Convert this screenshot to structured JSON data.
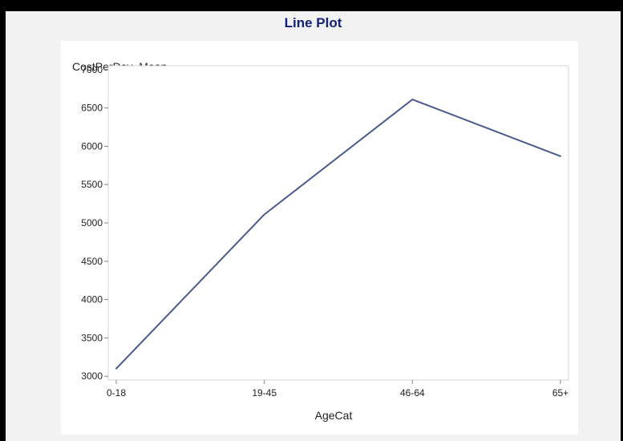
{
  "chart_data": {
    "type": "line",
    "title": "Line Plot",
    "xlabel": "AgeCat",
    "ylabel": "CostPerDay_Mean",
    "categories": [
      "0-18",
      "19-45",
      "46-64",
      "65+"
    ],
    "series": [
      {
        "values": [
          3100,
          5110,
          6610,
          5870
        ]
      }
    ],
    "y_ticks": [
      3000,
      3500,
      4000,
      4500,
      5000,
      5500,
      6000,
      6500,
      7000
    ],
    "ylim": [
      2950,
      7050
    ],
    "grid": false,
    "colors": {
      "line": "#4a5a8c",
      "frame": "#d3d3d3",
      "axis_text": "#222222",
      "title": "#112277"
    }
  }
}
